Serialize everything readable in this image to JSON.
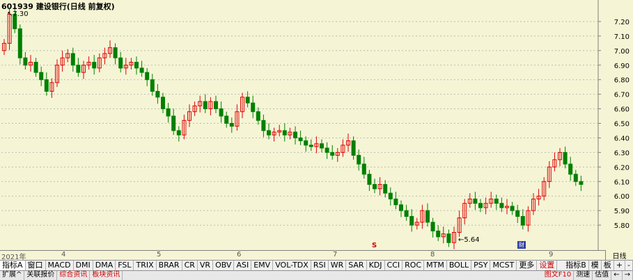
{
  "title": "601939 建设银行(日线 前复权)",
  "high_label": "7.30",
  "low_label": "5.64",
  "period_label": "日线",
  "months": [
    "2021年",
    "4",
    "5",
    "6",
    "7",
    "8",
    "9"
  ],
  "tabs": [
    {
      "label": "指标A"
    },
    {
      "label": "窗口"
    },
    {
      "label": "MACD"
    },
    {
      "label": "DMI"
    },
    {
      "label": "DMA"
    },
    {
      "label": "FSL"
    },
    {
      "label": "TRIX"
    },
    {
      "label": "BRAR"
    },
    {
      "label": "CR"
    },
    {
      "label": "VR"
    },
    {
      "label": "OBV"
    },
    {
      "label": "ASI"
    },
    {
      "label": "EMV"
    },
    {
      "label": "VOL-TDX"
    },
    {
      "label": "RSI"
    },
    {
      "label": "WR"
    },
    {
      "label": "SAR"
    },
    {
      "label": "KDJ"
    },
    {
      "label": "CCI"
    },
    {
      "label": "ROC"
    },
    {
      "label": "MTM"
    },
    {
      "label": "BOLL"
    },
    {
      "label": "PSY"
    },
    {
      "label": "MCST"
    },
    {
      "label": "更多"
    },
    {
      "label": "设置"
    }
  ],
  "right_tabs": [
    {
      "label": "指标B"
    },
    {
      "label": "模"
    },
    {
      "label": "板"
    }
  ],
  "bottom_tabs": [
    {
      "label": "扩展"
    },
    {
      "label": "关联报价"
    },
    {
      "label": "综合资讯"
    },
    {
      "label": "板块资讯"
    }
  ],
  "bottom_right": [
    {
      "label": "图文F10"
    },
    {
      "label": "测速"
    },
    {
      "label": "估值"
    }
  ],
  "nav_buttons": [
    "+",
    "-",
    "←",
    "→"
  ],
  "event_icons": {
    "s": "S",
    "cai": "财"
  },
  "colors": {
    "up": "#e00000",
    "down": "#008000",
    "bg": "#f5f5d5",
    "grid": "#b8b8b8"
  },
  "chart_data": {
    "type": "candlestick",
    "title": "601939 建设银行(日线 前复权)",
    "ylim": [
      5.7,
      7.3
    ],
    "yticks": [
      "5.80",
      "5.90",
      "6.00",
      "6.10",
      "6.20",
      "6.30",
      "6.40",
      "6.50",
      "6.60",
      "6.70",
      "6.80",
      "6.90",
      "7.00",
      "7.10",
      "7.20"
    ],
    "high": 7.3,
    "low": 5.64,
    "last_close": 6.08,
    "closes": [
      7.05,
      7.25,
      7.15,
      6.95,
      6.9,
      6.92,
      6.85,
      6.8,
      6.72,
      6.78,
      6.9,
      6.95,
      6.98,
      6.9,
      6.85,
      6.9,
      6.92,
      6.88,
      6.95,
      6.98,
      7.02,
      6.95,
      6.88,
      6.9,
      6.92,
      6.88,
      6.85,
      6.8,
      6.72,
      6.68,
      6.6,
      6.55,
      6.45,
      6.42,
      6.52,
      6.58,
      6.62,
      6.65,
      6.6,
      6.65,
      6.6,
      6.55,
      6.5,
      6.48,
      6.58,
      6.68,
      6.64,
      6.58,
      6.52,
      6.45,
      6.42,
      6.44,
      6.45,
      6.42,
      6.44,
      6.4,
      6.38,
      6.35,
      6.34,
      6.36,
      6.33,
      6.3,
      6.28,
      6.3,
      6.35,
      6.38,
      6.28,
      6.22,
      6.15,
      6.08,
      6.05,
      6.08,
      6.02,
      5.98,
      5.94,
      5.9,
      5.86,
      5.8,
      5.82,
      5.9,
      5.82,
      5.76,
      5.72,
      5.74,
      5.68,
      5.75,
      5.85,
      5.95,
      5.98,
      5.95,
      5.92,
      5.95,
      5.98,
      5.95,
      5.92,
      5.93,
      5.9,
      5.86,
      5.8,
      5.9,
      5.98,
      6.0,
      6.1,
      6.2,
      6.25,
      6.3,
      6.22,
      6.15,
      6.1,
      6.08
    ]
  }
}
